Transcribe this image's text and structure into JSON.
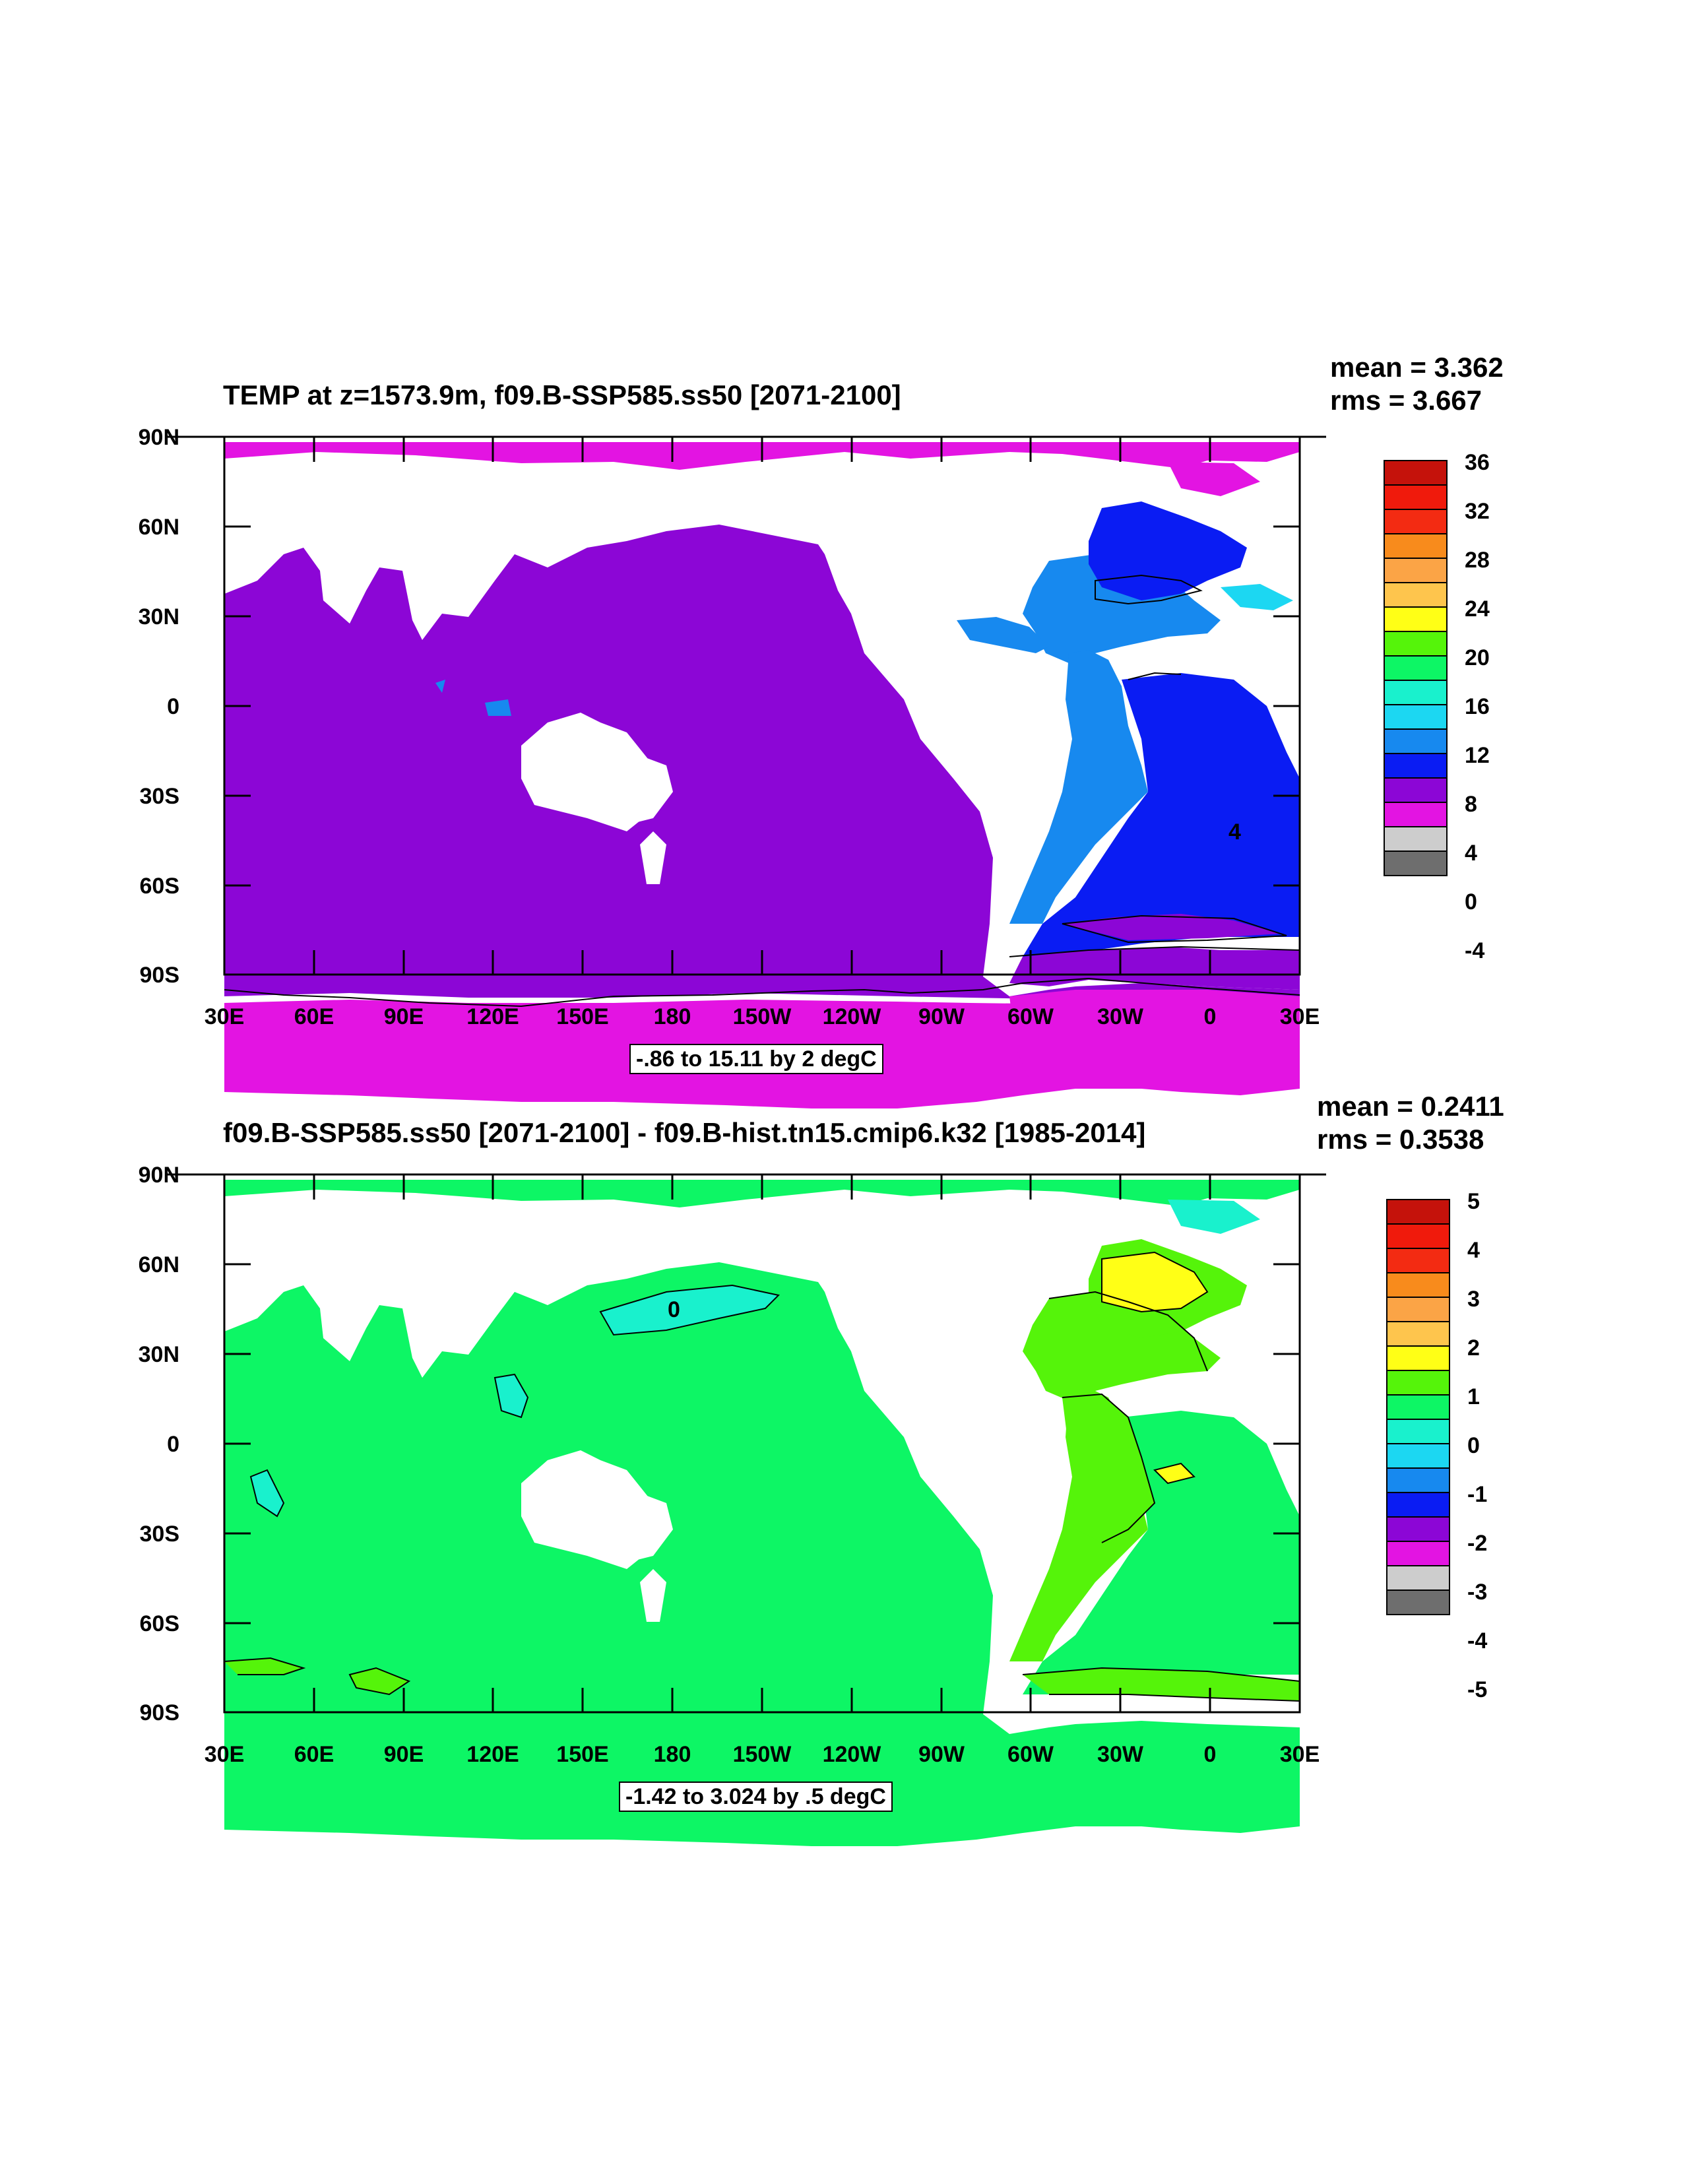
{
  "colors": {
    "c_m4": "#6e6e6e",
    "c_0": "#cdcdcd",
    "c_lt0": "#e314e2",
    "c_purple": "#8c06d6",
    "c_blue": "#0a1cf3",
    "c_mblue": "#1789ef",
    "c_lblue": "#1cd7f2",
    "c_cyan": "#19f1cd",
    "c_green": "#0df665",
    "c_lgreen": "#55f40a",
    "c_yellow": "#ffff16",
    "c_lorange": "#fec54d",
    "c_orange": "#fba446",
    "c_dorange": "#f88b1c",
    "c_red": "#f32b12",
    "c_dred": "#c5120b",
    "land": "#ffffff"
  },
  "panels": [
    {
      "title": "TEMP at z=1573.9m, f09.B-SSP585.ss50 [2071-2100]",
      "mean": "mean = 3.362",
      "rms": "rms = 3.667",
      "range": "-.86 to 15.11 by 2 degC",
      "colorbar_labels": [
        "36",
        "32",
        "28",
        "24",
        "20",
        "16",
        "12",
        "8",
        "4",
        "0",
        "-4"
      ],
      "colorbar_colors": [
        "#c5120b",
        "#f01a0c",
        "#f32b12",
        "#f88b1c",
        "#fba446",
        "#fec54d",
        "#ffff16",
        "#55f40a",
        "#0df665",
        "#19f1cd",
        "#1cd7f2",
        "#1789ef",
        "#0a1cf3",
        "#8c06d6",
        "#e314e2",
        "#cdcdcd",
        "#6e6e6e"
      ],
      "contour_label": "4"
    },
    {
      "title": "f09.B-SSP585.ss50 [2071-2100] - f09.B-hist.tn15.cmip6.k32 [1985-2014]",
      "mean": "mean = 0.2411",
      "rms": "rms = 0.3538",
      "range": "-1.42 to 3.024 by .5 degC",
      "colorbar_labels": [
        "5",
        "4",
        "3",
        "2",
        "1",
        "0",
        "-1",
        "-2",
        "-3",
        "-4",
        "-5"
      ],
      "colorbar_colors": [
        "#c5120b",
        "#f01a0c",
        "#f32b12",
        "#f88b1c",
        "#fba446",
        "#fec54d",
        "#ffff16",
        "#55f40a",
        "#0df665",
        "#19f1cd",
        "#1cd7f2",
        "#1789ef",
        "#0a1cf3",
        "#8c06d6",
        "#e314e2",
        "#cdcdcd",
        "#6e6e6e"
      ],
      "contour_label": "0"
    }
  ],
  "axes": {
    "y_labels": [
      "90N",
      "60N",
      "30N",
      "0",
      "30S",
      "60S",
      "90S"
    ],
    "x_labels": [
      "30E",
      "60E",
      "90E",
      "120E",
      "150E",
      "180",
      "150W",
      "120W",
      "90W",
      "60W",
      "30W",
      "0",
      "30E"
    ]
  }
}
